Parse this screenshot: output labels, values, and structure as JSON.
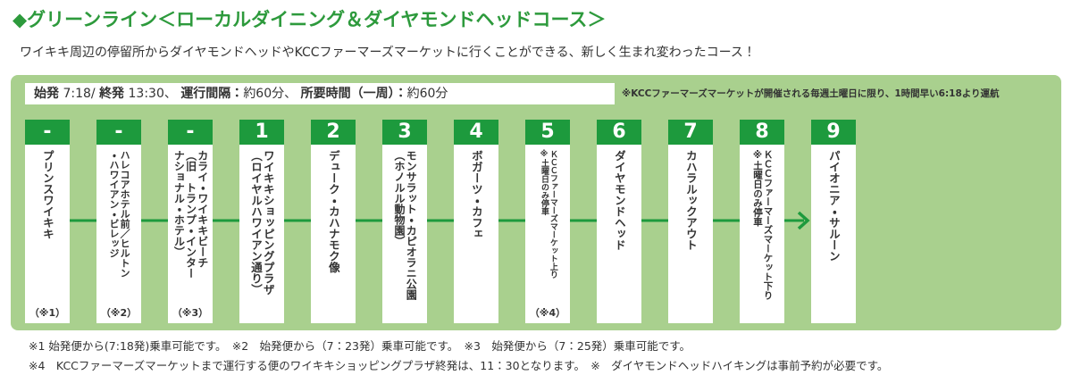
{
  "header": {
    "title": "◆グリーンライン＜ローカルダイニング＆ダイヤモンドヘッドコース＞",
    "subtitle": "ワイキキ周辺の停留所からダイヤモンドヘッドやKCCファーマーズマーケットに行くことができる、新しく生まれ変わったコース！"
  },
  "schedule": {
    "parts": [
      "始発",
      " 7:18/ ",
      "終発",
      " 13:30、 ",
      "運行間隔：",
      "約60分、 ",
      "所要時間（一周）：",
      "約60分"
    ],
    "note": "※KCCファーマーズマーケットが開催される毎週土曜日に限り、1時間早い6:18より運航"
  },
  "stops": [
    {
      "number": "-",
      "lines": [
        "プリンスワイキキ"
      ],
      "note": "（※1）"
    },
    {
      "number": "-",
      "lines": [
        "ハレコアホテル前／ヒルトン",
        "・ハワイアン・ビレッジ"
      ],
      "note": "（※2）"
    },
    {
      "number": "-",
      "lines": [
        "カライ・ワイキキビーチ",
        "（旧　トランプ・インター",
        "ナショナル・ホテル）"
      ],
      "note": "（※3）"
    },
    {
      "number": "1",
      "lines": [
        "ワイキキショッピングプラザ",
        "（ロイヤルハワイアン通り）"
      ]
    },
    {
      "number": "2",
      "lines": [
        "デューク・カハナモク像"
      ]
    },
    {
      "number": "3",
      "lines": [
        "モンサラット・カピオラニ公園",
        "（ホノルル動物園）"
      ]
    },
    {
      "number": "4",
      "lines": [
        "ボガーツ・カフェ"
      ]
    },
    {
      "number": "5",
      "lines": [
        "ＫＣＣファーマーズマーケット上り",
        "※土曜日のみ停車"
      ],
      "note": "（※4）"
    },
    {
      "number": "6",
      "lines": [
        "ダイヤモンドヘッド"
      ]
    },
    {
      "number": "7",
      "lines": [
        "カハラルックアウト"
      ]
    },
    {
      "number": "8",
      "lines": [
        "ＫＣＣファーマーズマーケット下り",
        "※土曜日のみ停車"
      ]
    },
    {
      "number": "9",
      "lines": [
        "パイオニア・サルーン"
      ]
    }
  ],
  "footnotes": [
    "※1 始発便から(7:18発)乗車可能です。　※2　始発便から（7：23発）乗車可能です。　※3　始発便から（7：25発）乗車可能です。",
    "※4　KCCファーマーズマーケットまで運行する便のワイキキショッピングプラザ終発は、11：30となります。　※　ダイヤモンドヘッドハイキングは事前予約が必要です。"
  ]
}
